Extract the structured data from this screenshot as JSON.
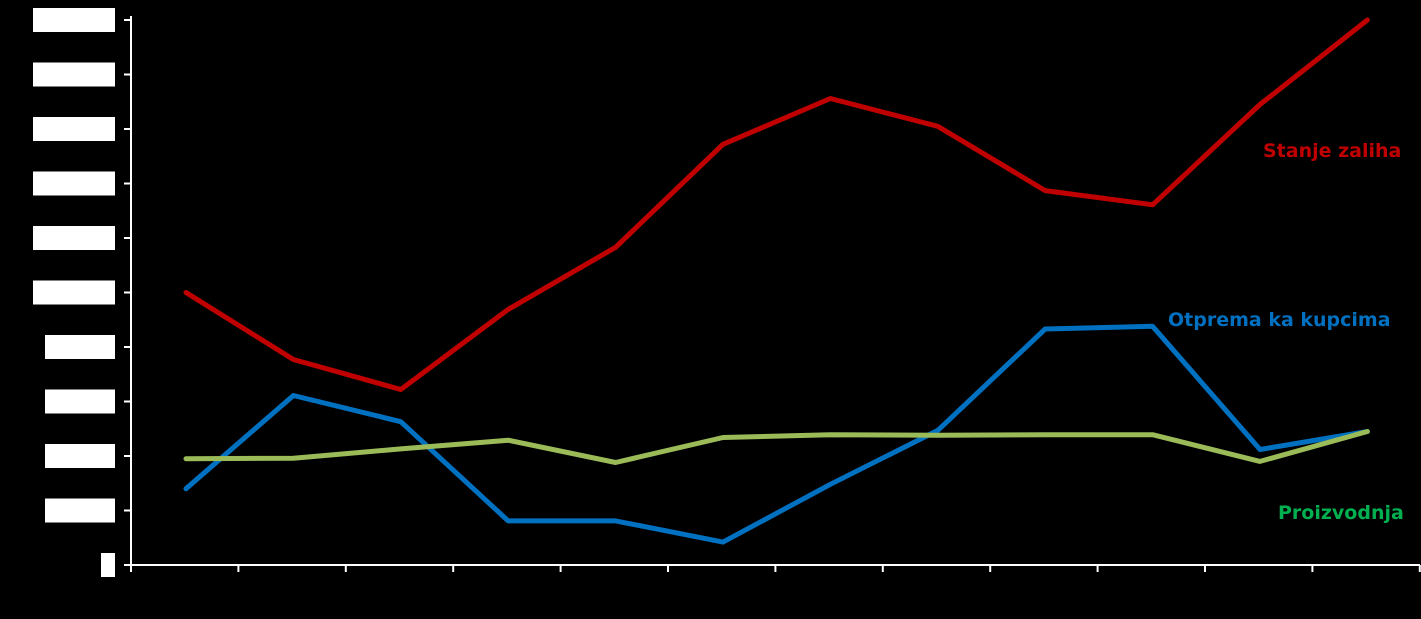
{
  "chart_data": {
    "type": "line",
    "x": [
      1,
      2,
      3,
      4,
      5,
      6,
      7,
      8,
      9,
      10,
      11,
      12,
      13
    ],
    "ylim": [
      0,
      10
    ],
    "grid": false,
    "y_tick_labels_obscured": true,
    "series": [
      {
        "name": "Stanje zaliha",
        "color": "#c00000",
        "values": [
          5.0,
          3.77,
          3.22,
          4.69,
          5.83,
          7.72,
          8.56,
          8.05,
          6.87,
          6.61,
          8.45,
          10.0,
          null
        ]
      },
      {
        "name": "Otprema ka kupcima",
        "color": "#0070c0",
        "values": [
          1.4,
          3.11,
          2.63,
          0.81,
          0.81,
          0.42,
          1.48,
          2.47,
          4.33,
          4.38,
          2.12,
          2.45,
          null
        ]
      },
      {
        "name": "Proizvodnja",
        "color": "#9bbb59",
        "values": [
          1.95,
          1.96,
          2.13,
          2.29,
          1.88,
          2.34,
          2.39,
          2.38,
          2.39,
          2.39,
          1.9,
          2.45,
          null
        ]
      }
    ],
    "series_label_colors": {
      "Stanje zaliha": "#c00000",
      "Otprema ka kupcima": "#0070c0",
      "Proizvodnja": "#00b050"
    }
  }
}
